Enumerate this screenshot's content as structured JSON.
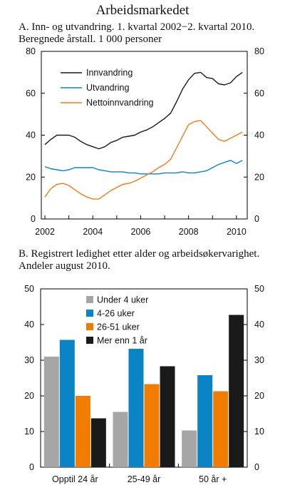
{
  "page_title": "Arbeidsmarkedet",
  "chart_data": [
    {
      "type": "line",
      "title": "A.  Inn- og utvandring. 1. kvartal 2002−2. kvartal 2010. Beregnede årstall. 1 000 personer",
      "x": [
        2002.0,
        2002.25,
        2002.5,
        2002.75,
        2003.0,
        2003.25,
        2003.5,
        2003.75,
        2004.0,
        2004.25,
        2004.5,
        2004.75,
        2005.0,
        2005.25,
        2005.5,
        2005.75,
        2006.0,
        2006.25,
        2006.5,
        2006.75,
        2007.0,
        2007.25,
        2007.5,
        2007.75,
        2008.0,
        2008.25,
        2008.5,
        2008.75,
        2009.0,
        2009.25,
        2009.5,
        2009.75,
        2010.0,
        2010.25
      ],
      "series": [
        {
          "name": "Innvandring",
          "color": "#1a1a1a",
          "values": [
            35.5,
            38,
            40,
            40,
            40,
            39,
            37,
            35.5,
            34.5,
            33.5,
            34.5,
            36.5,
            37.5,
            39,
            39.5,
            40,
            41.5,
            42.5,
            44,
            46,
            48,
            50.5,
            56,
            62,
            66.5,
            69.5,
            70,
            67.5,
            67,
            64.5,
            64,
            65,
            68,
            70
          ]
        },
        {
          "name": "Utvandring",
          "color": "#0b84c6",
          "values": [
            25,
            24,
            23.5,
            23,
            23.5,
            24.5,
            24.5,
            24.5,
            24.5,
            23.5,
            23,
            22.5,
            22.5,
            22.5,
            22,
            22,
            21.5,
            21.5,
            21.5,
            21.5,
            22,
            22,
            22,
            22.5,
            22,
            22,
            22.5,
            23,
            24.5,
            26,
            27,
            28,
            26.5,
            28
          ]
        },
        {
          "name": "Nettoinnvandring",
          "color": "#ef7c1e",
          "values": [
            10.5,
            14.5,
            16.5,
            17,
            16,
            14,
            12,
            10.5,
            9.5,
            9.5,
            11.5,
            13.5,
            15,
            16.5,
            17,
            18,
            19.5,
            21,
            22.5,
            24.5,
            26,
            28.5,
            34,
            39.5,
            45,
            46.5,
            47,
            44,
            41,
            38,
            37,
            38.5,
            40,
            41.5
          ]
        }
      ],
      "xlim": [
        2001.85,
        2010.45
      ],
      "ylim": [
        0,
        80
      ],
      "x_ticks": [
        2002,
        2004,
        2006,
        2008,
        2010
      ],
      "y_ticks": [
        0,
        20,
        40,
        60,
        80
      ],
      "legend_position": "top-center",
      "grid": false
    },
    {
      "type": "bar",
      "title": "B.  Registrert ledighet etter alder og arbeidsøkervarighet. Andeler august 2010.",
      "categories": [
        "Opptil 24 år",
        "25-49 år",
        "50 år +"
      ],
      "series": [
        {
          "name": "Under 4 uker",
          "color": "#a6a6a6",
          "values": [
            31,
            15.5,
            10.3
          ]
        },
        {
          "name": "4-26 uker",
          "color": "#0b84c6",
          "values": [
            35.7,
            33.2,
            25.8
          ]
        },
        {
          "name": "26-51 uker",
          "color": "#f07d00",
          "values": [
            20,
            23.3,
            21.3
          ]
        },
        {
          "name": "Mer enn 1 år",
          "color": "#1a1a1a",
          "values": [
            13.7,
            28.3,
            42.7
          ]
        }
      ],
      "ylim": [
        0,
        50
      ],
      "y_ticks": [
        0,
        10,
        20,
        30,
        40,
        50
      ],
      "legend_position": "top-left",
      "grid": false
    }
  ]
}
